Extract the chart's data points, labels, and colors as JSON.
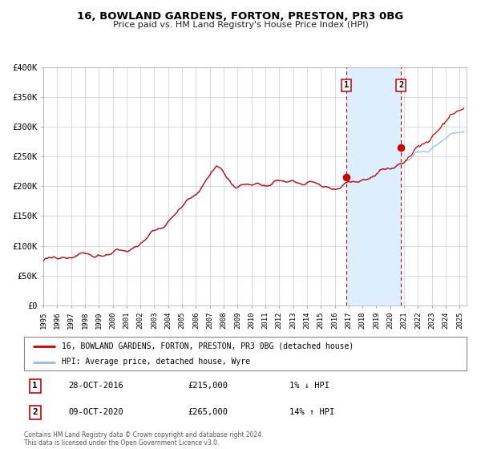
{
  "title": "16, BOWLAND GARDENS, FORTON, PRESTON, PR3 0BG",
  "subtitle": "Price paid vs. HM Land Registry's House Price Index (HPI)",
  "ylim": [
    0,
    400000
  ],
  "xlim_start": 1995.0,
  "xlim_end": 2025.5,
  "yticks": [
    0,
    50000,
    100000,
    150000,
    200000,
    250000,
    300000,
    350000,
    400000
  ],
  "ytick_labels": [
    "£0",
    "£50K",
    "£100K",
    "£150K",
    "£200K",
    "£250K",
    "£300K",
    "£350K",
    "£400K"
  ],
  "hpi_line_color": "#99bbdd",
  "price_line_color": "#cc0000",
  "marker_color": "#cc0000",
  "dashed_line_color": "#cc0000",
  "shade_color": "#ddeeff",
  "transaction1_x": 2016.83,
  "transaction1_y": 215000,
  "transaction2_x": 2020.77,
  "transaction2_y": 265000,
  "legend_label_price": "16, BOWLAND GARDENS, FORTON, PRESTON, PR3 0BG (detached house)",
  "legend_label_hpi": "HPI: Average price, detached house, Wyre",
  "note1_num": "1",
  "note1_date": "28-OCT-2016",
  "note1_price": "£215,000",
  "note1_hpi": "1% ↓ HPI",
  "note2_num": "2",
  "note2_date": "09-OCT-2020",
  "note2_price": "£265,000",
  "note2_hpi": "14% ↑ HPI",
  "footer": "Contains HM Land Registry data © Crown copyright and database right 2024.\nThis data is licensed under the Open Government Licence v3.0.",
  "background_color": "#ffffff",
  "grid_color": "#cccccc"
}
